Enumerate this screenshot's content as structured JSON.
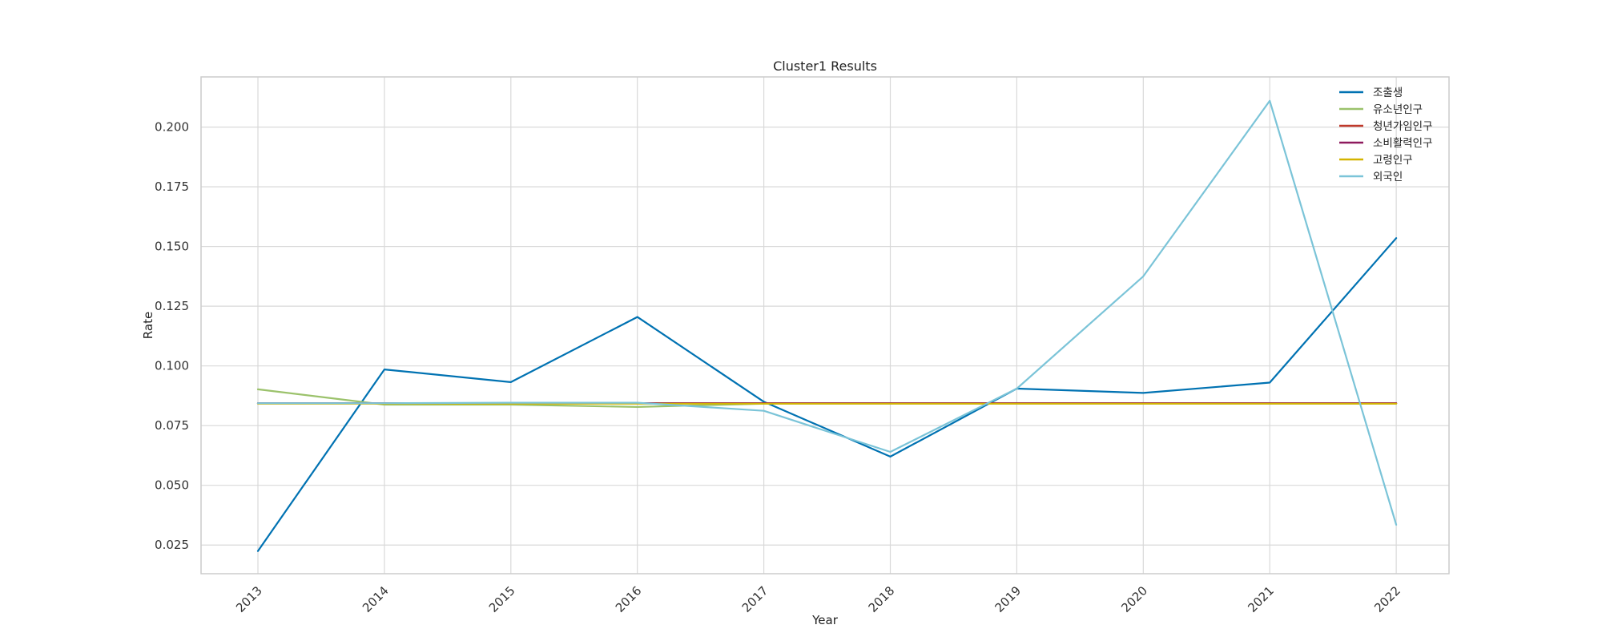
{
  "chart_data": {
    "type": "line",
    "title": "Cluster1 Results",
    "xlabel": "Year",
    "ylabel": "Rate",
    "x": [
      "2013",
      "2014",
      "2015",
      "2016",
      "2017",
      "2018",
      "2019",
      "2020",
      "2021",
      "2022"
    ],
    "ylim": [
      0.013,
      0.221
    ],
    "yticks": [
      "0.025",
      "0.050",
      "0.075",
      "0.100",
      "0.125",
      "0.150",
      "0.175",
      "0.200"
    ],
    "grid": true,
    "legend_position": "top-right",
    "series": [
      {
        "name": "조출생",
        "color": "#0072b2",
        "values": [
          0.0225,
          0.0985,
          0.0932,
          0.1205,
          0.085,
          0.062,
          0.0905,
          0.0887,
          0.093,
          0.1535
        ]
      },
      {
        "name": "유소년인구",
        "color": "#9bc26b",
        "values": [
          0.0902,
          0.0838,
          0.0838,
          0.0828,
          0.0842,
          0.0842,
          0.0842,
          0.0842,
          0.0842,
          0.0842
        ]
      },
      {
        "name": "청년가임인구",
        "color": "#c0392b",
        "values": [
          0.0844,
          0.0844,
          0.0844,
          0.0844,
          0.0844,
          0.0844,
          0.0844,
          0.0844,
          0.0844,
          0.0844
        ]
      },
      {
        "name": "소비활력인구",
        "color": "#8e1a5e",
        "values": [
          0.0844,
          0.0844,
          0.0844,
          0.0844,
          0.0844,
          0.0844,
          0.0844,
          0.0844,
          0.0844,
          0.0844
        ]
      },
      {
        "name": "고령인구",
        "color": "#d4b400",
        "values": [
          0.0842,
          0.0842,
          0.0842,
          0.0842,
          0.0842,
          0.0842,
          0.0842,
          0.0842,
          0.0842,
          0.0842
        ]
      },
      {
        "name": "외국인",
        "color": "#7bc4d8",
        "values": [
          0.0844,
          0.0844,
          0.0846,
          0.0846,
          0.0812,
          0.064,
          0.0905,
          0.1375,
          0.211,
          0.0335
        ]
      }
    ]
  }
}
